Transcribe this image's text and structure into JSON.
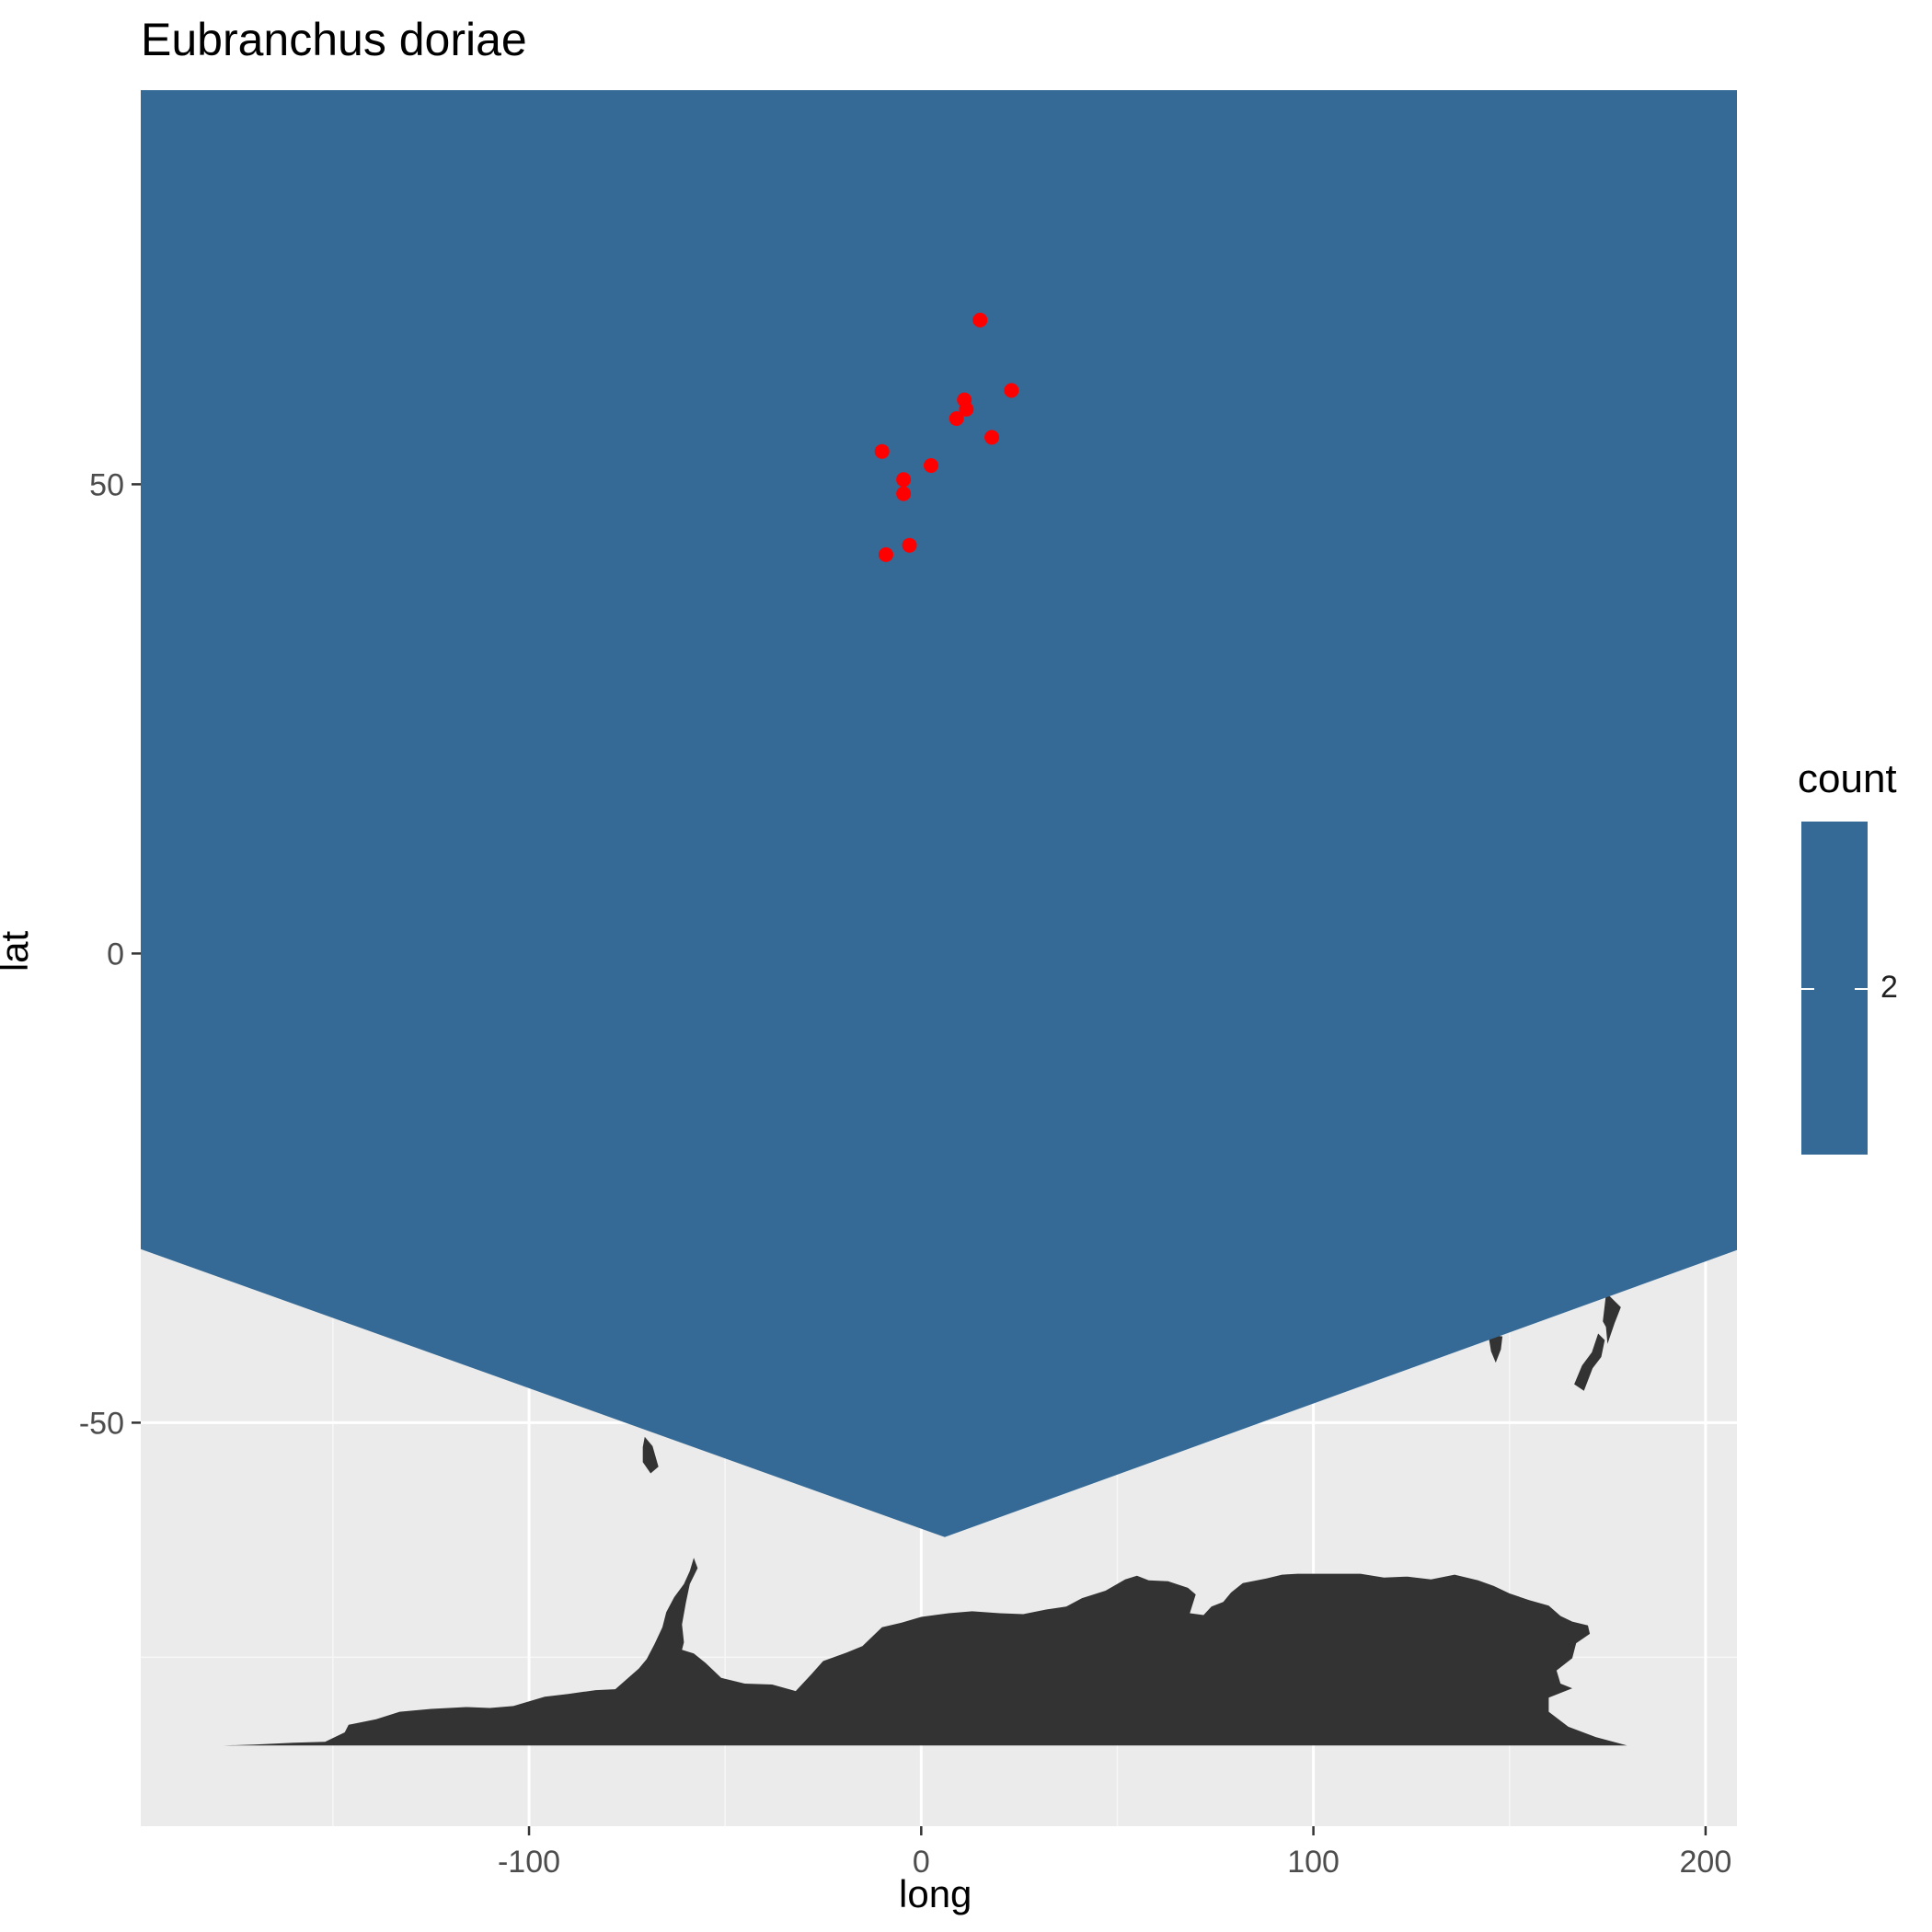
{
  "chart_data": {
    "type": "scatter",
    "title": "Eubranchus doriae",
    "xlabel": "long",
    "ylabel": "lat",
    "xlim": [
      -199,
      208
    ],
    "ylim": [
      -93,
      92
    ],
    "x_ticks": [
      -100,
      0,
      100,
      200
    ],
    "y_ticks": [
      -50,
      0,
      50
    ],
    "x_tick_labels": [
      "-100",
      "0",
      "100",
      "200"
    ],
    "y_tick_labels": [
      "-50",
      "0",
      "50"
    ],
    "grid": true,
    "background": "#EBEBEB",
    "land_color": "#333333",
    "density_fill_color": "#366A96",
    "point_color": "#FF0000",
    "points": [
      {
        "x": 15,
        "y": 67.5
      },
      {
        "x": 23,
        "y": 60
      },
      {
        "x": 11,
        "y": 59
      },
      {
        "x": 11.5,
        "y": 58
      },
      {
        "x": 9,
        "y": 57
      },
      {
        "x": 18,
        "y": 55
      },
      {
        "x": -10,
        "y": 53.5
      },
      {
        "x": 2.5,
        "y": 52
      },
      {
        "x": -4.5,
        "y": 50.5
      },
      {
        "x": -4.5,
        "y": 49
      },
      {
        "x": -3,
        "y": 43.5
      },
      {
        "x": -9,
        "y": 42.5
      }
    ],
    "legend": {
      "title": "count",
      "position": "right",
      "tick_label": "2"
    }
  }
}
